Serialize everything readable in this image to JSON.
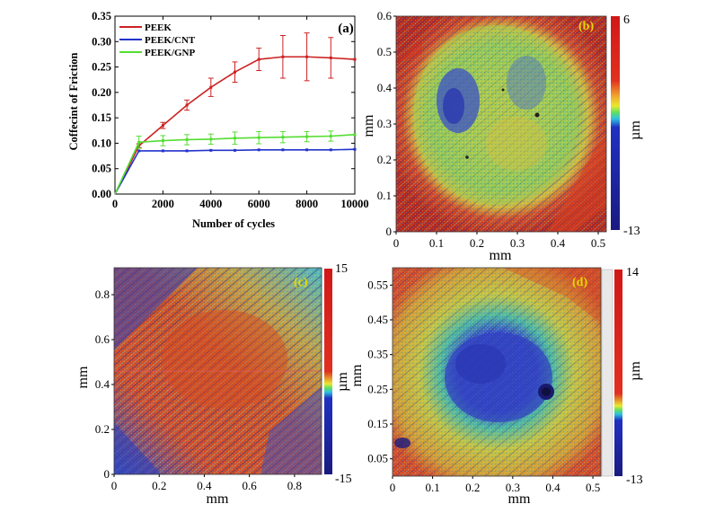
{
  "chart_data": [
    {
      "type": "line",
      "panel_label": "(a)",
      "xlabel": "Number of cycles",
      "ylabel": "Coffecint of Friction",
      "xlim": [
        0,
        10000
      ],
      "ylim": [
        0,
        0.35
      ],
      "xticks": [
        "0",
        "2000",
        "4000",
        "6000",
        "8000",
        "10000"
      ],
      "yticks": [
        "0.00",
        "0.05",
        "0.10",
        "0.15",
        "0.20",
        "0.25",
        "0.30",
        "0.35"
      ],
      "x": [
        0,
        1000,
        2000,
        3000,
        4000,
        5000,
        6000,
        7000,
        8000,
        9000,
        10000
      ],
      "legend_position": "top-left",
      "series": [
        {
          "name": "PEEK",
          "color": "#cc2222",
          "values": [
            0.0,
            0.095,
            0.135,
            0.175,
            0.21,
            0.24,
            0.265,
            0.27,
            0.27,
            0.268,
            0.265
          ],
          "errors": [
            0,
            0.004,
            0.006,
            0.01,
            0.018,
            0.02,
            0.022,
            0.042,
            0.047,
            0.04,
            0
          ]
        },
        {
          "name": "PEEK/CNT",
          "color": "#2233cc",
          "values": [
            0.0,
            0.085,
            0.085,
            0.085,
            0.086,
            0.086,
            0.087,
            0.087,
            0.087,
            0.087,
            0.088
          ],
          "errors": [
            0,
            0,
            0,
            0,
            0,
            0,
            0,
            0,
            0,
            0,
            0
          ]
        },
        {
          "name": "PEEK/GNP",
          "color": "#55dd33",
          "values": [
            0.0,
            0.102,
            0.105,
            0.107,
            0.108,
            0.11,
            0.111,
            0.112,
            0.113,
            0.114,
            0.117
          ],
          "errors": [
            0,
            0.012,
            0.01,
            0.01,
            0.01,
            0.012,
            0.012,
            0.011,
            0.01,
            0.01,
            0
          ]
        }
      ]
    },
    {
      "type": "heatmap",
      "panel_label": "(b)",
      "xlabel": "mm",
      "ylabel": "mm",
      "xlim": [
        0,
        0.52
      ],
      "ylim": [
        0,
        0.6
      ],
      "xticks": [
        "0",
        "0.1",
        "0.2",
        "0.3",
        "0.4",
        "0.5"
      ],
      "yticks": [
        "0",
        "0.1",
        "0.2",
        "0.3",
        "0.4",
        "0.5",
        "0.6"
      ],
      "colorbar": {
        "label": "µm",
        "max": "6",
        "min": "-13"
      }
    },
    {
      "type": "heatmap",
      "panel_label": "(c)",
      "xlabel": "mm",
      "ylabel": "mm",
      "xlim": [
        0,
        0.92
      ],
      "ylim": [
        0,
        0.92
      ],
      "xticks": [
        "0",
        "0.2",
        "0.4",
        "0.6",
        "0.8"
      ],
      "yticks": [
        "0",
        "0.2",
        "0.4",
        "0.6",
        "0.8"
      ],
      "colorbar": {
        "label": "µm",
        "max": "15",
        "min": "-15"
      }
    },
    {
      "type": "heatmap",
      "panel_label": "(d)",
      "xlabel": "mm",
      "ylabel": "mm",
      "xlim": [
        0,
        0.52
      ],
      "ylim": [
        0,
        0.6
      ],
      "xticks": [
        "0",
        "0.1",
        "0.2",
        "0.3",
        "0.4",
        "0.5"
      ],
      "yticks": [
        "0.05",
        "0.15",
        "0.25",
        "0.35",
        "0.45",
        "0.55"
      ],
      "colorbar": {
        "label": "µm",
        "max": "14",
        "min": "-13"
      }
    }
  ],
  "colors": {
    "map_red": "#d42a1e",
    "map_orange": "#e0902a",
    "map_yellow": "#d8d83a",
    "map_green": "#5fd06a",
    "map_cyan": "#3ad0d8",
    "map_blue": "#3340c8",
    "map_navy": "#1a1a8a",
    "panel_label_color": "#e8d800"
  }
}
